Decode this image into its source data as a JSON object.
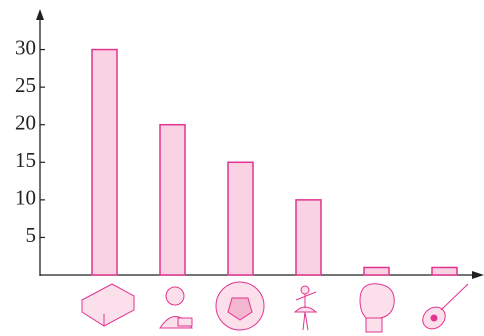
{
  "chart_data": {
    "type": "bar",
    "categories": [
      null,
      null,
      null,
      null,
      null,
      null
    ],
    "values": [
      30,
      20,
      15,
      10,
      1,
      1
    ],
    "color": "#f9d3e3",
    "edge_color": "#e2348f",
    "ylim": [
      0,
      35
    ],
    "yticks": [
      5,
      10,
      15,
      20,
      25,
      30
    ],
    "grid": false
  }
}
